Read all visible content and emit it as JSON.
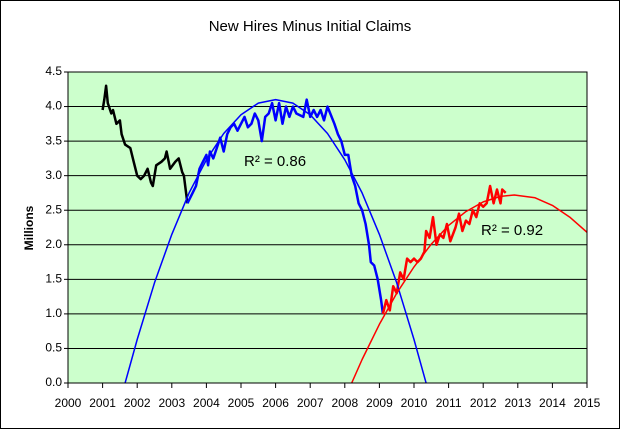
{
  "chart_data": {
    "type": "line",
    "title": "New Hires Minus Initial Claims",
    "y_label": "Millions",
    "xlim": [
      2000,
      2015
    ],
    "xticks": [
      2000,
      2001,
      2002,
      2003,
      2004,
      2005,
      2006,
      2007,
      2008,
      2009,
      2010,
      2011,
      2012,
      2013,
      2014,
      2015
    ],
    "ylim": [
      0,
      4.5
    ],
    "yticks": [
      {
        "value": 0,
        "label": "0.0"
      },
      0.5,
      {
        "value": 1,
        "label": "1.0"
      },
      1.5,
      {
        "value": 2,
        "label": "2.0"
      },
      2.5,
      {
        "value": 3,
        "label": "3.0"
      },
      3.5,
      {
        "value": 4,
        "label": "4.0"
      },
      4.5
    ],
    "grid": true,
    "background": "#ccffcc",
    "series": [
      {
        "color": "#000000",
        "line_width": 2.5,
        "x": [
          2001.0,
          2001.05,
          2001.1,
          2001.15,
          2001.25,
          2001.3,
          2001.4,
          2001.5,
          2001.55,
          2001.65,
          2001.8,
          2001.9,
          2002.0,
          2002.1,
          2002.2,
          2002.3,
          2002.4,
          2002.45,
          2002.55,
          2002.7,
          2002.8,
          2002.85,
          2002.95,
          2003.1,
          2003.2,
          2003.3,
          2003.35,
          2003.45
        ],
        "values": [
          3.95,
          4.1,
          4.3,
          4.05,
          3.9,
          3.95,
          3.75,
          3.8,
          3.6,
          3.45,
          3.4,
          3.2,
          3.0,
          2.95,
          3.0,
          3.1,
          2.9,
          2.85,
          3.15,
          3.2,
          3.25,
          3.35,
          3.1,
          3.2,
          3.25,
          3.05,
          3.0,
          2.6
        ]
      },
      {
        "color": "#0000ff",
        "line_width": 2.5,
        "x": [
          2003.45,
          2003.6,
          2003.7,
          2003.8,
          2003.9,
          2004.0,
          2004.05,
          2004.1,
          2004.2,
          2004.3,
          2004.4,
          2004.5,
          2004.6,
          2004.7,
          2004.8,
          2004.9,
          2005.0,
          2005.1,
          2005.2,
          2005.3,
          2005.4,
          2005.5,
          2005.6,
          2005.7,
          2005.8,
          2005.9,
          2006.0,
          2006.1,
          2006.2,
          2006.3,
          2006.4,
          2006.5,
          2006.6,
          2006.8,
          2006.9,
          2007.0,
          2007.1,
          2007.2,
          2007.3,
          2007.4,
          2007.5,
          2007.7,
          2007.8,
          2007.9,
          2008.0,
          2008.1,
          2008.2,
          2008.3,
          2008.4,
          2008.5,
          2008.6,
          2008.7,
          2008.75,
          2008.85,
          2008.95,
          2009.05,
          2009.1
        ],
        "values": [
          2.6,
          2.75,
          2.85,
          3.1,
          3.2,
          3.3,
          3.15,
          3.35,
          3.25,
          3.4,
          3.55,
          3.35,
          3.6,
          3.7,
          3.75,
          3.65,
          3.75,
          3.85,
          3.7,
          3.75,
          3.9,
          3.8,
          3.5,
          3.85,
          3.9,
          4.05,
          3.8,
          4.05,
          3.75,
          4.0,
          3.85,
          4.0,
          3.9,
          3.85,
          4.1,
          3.85,
          3.95,
          3.85,
          3.95,
          3.8,
          4.0,
          3.75,
          3.6,
          3.5,
          3.3,
          3.3,
          3.0,
          2.85,
          2.6,
          2.5,
          2.3,
          2.0,
          1.75,
          1.7,
          1.5,
          1.2,
          1.0
        ]
      },
      {
        "color": "#ff0000",
        "line_width": 2.5,
        "x": [
          2009.1,
          2009.2,
          2009.3,
          2009.4,
          2009.5,
          2009.6,
          2009.7,
          2009.8,
          2009.9,
          2010.0,
          2010.1,
          2010.2,
          2010.3,
          2010.35,
          2010.45,
          2010.55,
          2010.65,
          2010.75,
          2010.85,
          2010.95,
          2011.05,
          2011.2,
          2011.3,
          2011.4,
          2011.5,
          2011.6,
          2011.7,
          2011.8,
          2011.9,
          2012.0,
          2012.1,
          2012.2,
          2012.3,
          2012.4,
          2012.5,
          2012.55,
          2012.65
        ],
        "values": [
          1.0,
          1.2,
          1.05,
          1.4,
          1.3,
          1.6,
          1.5,
          1.8,
          1.75,
          1.8,
          1.75,
          1.8,
          1.9,
          2.2,
          2.1,
          2.4,
          2.0,
          2.15,
          2.1,
          2.3,
          2.05,
          2.25,
          2.45,
          2.2,
          2.35,
          2.3,
          2.5,
          2.4,
          2.6,
          2.55,
          2.6,
          2.85,
          2.6,
          2.8,
          2.6,
          2.8,
          2.75
        ]
      },
      {
        "color": "#0000ff",
        "line_width": 1.5,
        "x": [
          2001.65,
          2002,
          2002.5,
          2003,
          2003.5,
          2004,
          2004.5,
          2005,
          2005.5,
          2006,
          2006.5,
          2007,
          2007.5,
          2008,
          2008.5,
          2009,
          2009.5,
          2010,
          2010.35
        ],
        "values": [
          0,
          0.63,
          1.45,
          2.15,
          2.75,
          3.23,
          3.61,
          3.88,
          4.05,
          4.1,
          4.05,
          3.88,
          3.61,
          3.23,
          2.75,
          2.15,
          1.45,
          0.63,
          0
        ]
      },
      {
        "color": "#ff0000",
        "line_width": 1.5,
        "x": [
          2008.2,
          2008.5,
          2009,
          2009.5,
          2010,
          2010.5,
          2011,
          2011.5,
          2012,
          2012.5,
          2012.9,
          2013.5,
          2014,
          2014.5,
          2015
        ],
        "values": [
          0,
          0.34,
          0.85,
          1.3,
          1.68,
          2.01,
          2.28,
          2.48,
          2.62,
          2.7,
          2.72,
          2.68,
          2.57,
          2.4,
          2.18
        ]
      }
    ],
    "annotations": [
      {
        "text": "R² = 0.86",
        "color": "#0000ff"
      },
      {
        "text": "R² = 0.92",
        "color": "#ff0000"
      }
    ]
  }
}
